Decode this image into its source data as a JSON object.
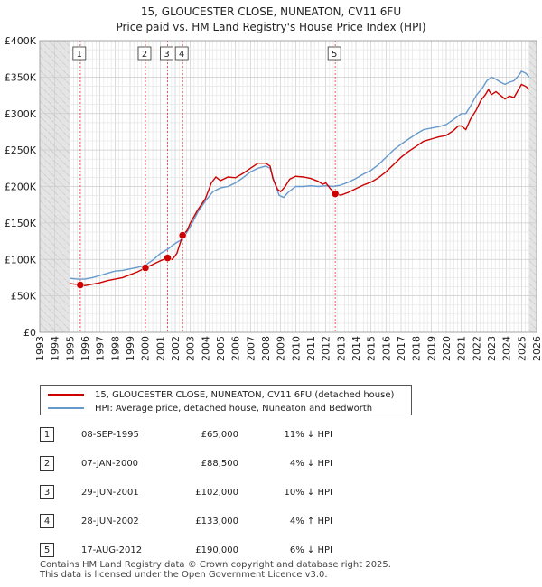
{
  "chart_data": {
    "type": "line",
    "title": "15, GLOUCESTER CLOSE, NUNEATON, CV11 6FU",
    "subtitle": "Price paid vs. HM Land Registry's House Price Index (HPI)",
    "xlim": [
      1993,
      2026
    ],
    "ylim": [
      0,
      400000
    ],
    "y_ticks": [
      0,
      50000,
      100000,
      150000,
      200000,
      250000,
      300000,
      350000,
      400000
    ],
    "y_tick_labels": [
      "£0",
      "£50K",
      "£100K",
      "£150K",
      "£200K",
      "£250K",
      "£300K",
      "£350K",
      "£400K"
    ],
    "x_ticks": [
      1993,
      1994,
      1995,
      1996,
      1997,
      1998,
      1999,
      2000,
      2001,
      2002,
      2003,
      2004,
      2005,
      2006,
      2007,
      2008,
      2009,
      2010,
      2011,
      2012,
      2013,
      2014,
      2015,
      2016,
      2017,
      2018,
      2019,
      2020,
      2021,
      2022,
      2023,
      2024,
      2025,
      2026
    ],
    "x_tick_labels": [
      "1993",
      "1994",
      "1995",
      "1996",
      "1997",
      "1998",
      "1999",
      "2000",
      "2001",
      "2002",
      "2003",
      "2004",
      "2005",
      "2006",
      "2007",
      "2008",
      "2009",
      "2010",
      "2011",
      "2012",
      "2013",
      "2014",
      "2015",
      "2016",
      "2017",
      "2018",
      "2019",
      "2020",
      "2021",
      "2022",
      "2023",
      "2024",
      "2025",
      "2026"
    ],
    "data_start": 1995.0,
    "data_end": 2025.5,
    "grid": true,
    "series": [
      {
        "name": "15, GLOUCESTER CLOSE, NUNEATON, CV11 6FU (detached house)",
        "color": "#cc0000",
        "points": [
          [
            1995.0,
            67000
          ],
          [
            1995.5,
            65500
          ],
          [
            1995.69,
            65000
          ],
          [
            1996.0,
            64000
          ],
          [
            1996.5,
            66000
          ],
          [
            1997.0,
            68000
          ],
          [
            1997.5,
            71000
          ],
          [
            1998.0,
            73000
          ],
          [
            1998.5,
            75000
          ],
          [
            1999.0,
            79000
          ],
          [
            1999.5,
            83000
          ],
          [
            2000.02,
            88500
          ],
          [
            2000.5,
            93000
          ],
          [
            2001.0,
            98000
          ],
          [
            2001.49,
            102000
          ],
          [
            2001.8,
            100000
          ],
          [
            2002.1,
            108000
          ],
          [
            2002.49,
            133000
          ],
          [
            2002.8,
            140000
          ],
          [
            2003.0,
            150000
          ],
          [
            2003.5,
            168000
          ],
          [
            2004.0,
            183000
          ],
          [
            2004.4,
            205000
          ],
          [
            2004.7,
            213000
          ],
          [
            2005.0,
            208000
          ],
          [
            2005.5,
            213000
          ],
          [
            2006.0,
            212000
          ],
          [
            2006.5,
            218000
          ],
          [
            2007.0,
            225000
          ],
          [
            2007.5,
            232000
          ],
          [
            2008.0,
            232000
          ],
          [
            2008.3,
            228000
          ],
          [
            2008.5,
            210000
          ],
          [
            2008.8,
            196000
          ],
          [
            2009.0,
            193000
          ],
          [
            2009.3,
            200000
          ],
          [
            2009.6,
            210000
          ],
          [
            2010.0,
            214000
          ],
          [
            2010.5,
            213000
          ],
          [
            2011.0,
            211000
          ],
          [
            2011.5,
            207000
          ],
          [
            2011.8,
            203000
          ],
          [
            2012.0,
            205000
          ],
          [
            2012.3,
            197000
          ],
          [
            2012.63,
            190000
          ],
          [
            2013.0,
            188000
          ],
          [
            2013.5,
            192000
          ],
          [
            2014.0,
            197000
          ],
          [
            2014.5,
            202000
          ],
          [
            2015.0,
            206000
          ],
          [
            2015.5,
            212000
          ],
          [
            2016.0,
            220000
          ],
          [
            2016.5,
            230000
          ],
          [
            2017.0,
            240000
          ],
          [
            2017.5,
            248000
          ],
          [
            2018.0,
            255000
          ],
          [
            2018.5,
            262000
          ],
          [
            2019.0,
            265000
          ],
          [
            2019.5,
            268000
          ],
          [
            2020.0,
            270000
          ],
          [
            2020.5,
            277000
          ],
          [
            2020.8,
            283000
          ],
          [
            2021.0,
            283000
          ],
          [
            2021.3,
            278000
          ],
          [
            2021.6,
            292000
          ],
          [
            2022.0,
            305000
          ],
          [
            2022.3,
            318000
          ],
          [
            2022.6,
            326000
          ],
          [
            2022.8,
            333000
          ],
          [
            2023.0,
            326000
          ],
          [
            2023.3,
            330000
          ],
          [
            2023.6,
            325000
          ],
          [
            2023.9,
            320000
          ],
          [
            2024.2,
            324000
          ],
          [
            2024.5,
            322000
          ],
          [
            2024.8,
            333000
          ],
          [
            2025.0,
            340000
          ],
          [
            2025.3,
            337000
          ],
          [
            2025.5,
            333000
          ]
        ]
      },
      {
        "name": "HPI: Average price, detached house, Nuneaton and Bedworth",
        "color": "#6699cc",
        "points": [
          [
            1995.0,
            74000
          ],
          [
            1995.5,
            73000
          ],
          [
            1996.0,
            73000
          ],
          [
            1996.5,
            75000
          ],
          [
            1997.0,
            78000
          ],
          [
            1997.5,
            81000
          ],
          [
            1998.0,
            84000
          ],
          [
            1998.5,
            85000
          ],
          [
            1999.0,
            87000
          ],
          [
            1999.5,
            89000
          ],
          [
            2000.0,
            92000
          ],
          [
            2000.5,
            99000
          ],
          [
            2001.0,
            108000
          ],
          [
            2001.5,
            114000
          ],
          [
            2002.0,
            122000
          ],
          [
            2002.5,
            128000
          ],
          [
            2003.0,
            145000
          ],
          [
            2003.5,
            165000
          ],
          [
            2004.0,
            180000
          ],
          [
            2004.5,
            193000
          ],
          [
            2005.0,
            198000
          ],
          [
            2005.5,
            200000
          ],
          [
            2006.0,
            205000
          ],
          [
            2006.5,
            212000
          ],
          [
            2007.0,
            220000
          ],
          [
            2007.5,
            225000
          ],
          [
            2008.0,
            228000
          ],
          [
            2008.3,
            225000
          ],
          [
            2008.6,
            205000
          ],
          [
            2008.9,
            188000
          ],
          [
            2009.2,
            185000
          ],
          [
            2009.5,
            192000
          ],
          [
            2010.0,
            200000
          ],
          [
            2010.5,
            200000
          ],
          [
            2011.0,
            201000
          ],
          [
            2011.5,
            200000
          ],
          [
            2012.0,
            201000
          ],
          [
            2012.5,
            200000
          ],
          [
            2013.0,
            202000
          ],
          [
            2013.5,
            206000
          ],
          [
            2014.0,
            211000
          ],
          [
            2014.5,
            217000
          ],
          [
            2015.0,
            222000
          ],
          [
            2015.5,
            230000
          ],
          [
            2016.0,
            240000
          ],
          [
            2016.5,
            250000
          ],
          [
            2017.0,
            258000
          ],
          [
            2017.5,
            265000
          ],
          [
            2018.0,
            272000
          ],
          [
            2018.5,
            278000
          ],
          [
            2019.0,
            280000
          ],
          [
            2019.5,
            282000
          ],
          [
            2020.0,
            285000
          ],
          [
            2020.5,
            292000
          ],
          [
            2021.0,
            300000
          ],
          [
            2021.3,
            300000
          ],
          [
            2021.6,
            310000
          ],
          [
            2022.0,
            325000
          ],
          [
            2022.4,
            335000
          ],
          [
            2022.7,
            345000
          ],
          [
            2023.0,
            350000
          ],
          [
            2023.3,
            347000
          ],
          [
            2023.6,
            343000
          ],
          [
            2023.9,
            340000
          ],
          [
            2024.2,
            343000
          ],
          [
            2024.5,
            345000
          ],
          [
            2024.8,
            352000
          ],
          [
            2025.0,
            358000
          ],
          [
            2025.3,
            355000
          ],
          [
            2025.5,
            350000
          ]
        ]
      }
    ],
    "sales": [
      {
        "id": "1",
        "x": 1995.69,
        "price": 65000
      },
      {
        "id": "2",
        "x": 2000.02,
        "price": 88500
      },
      {
        "id": "3",
        "x": 2001.49,
        "price": 102000
      },
      {
        "id": "4",
        "x": 2002.49,
        "price": 133000
      },
      {
        "id": "5",
        "x": 2012.63,
        "price": 190000
      }
    ]
  },
  "legend": {
    "property_label": "15, GLOUCESTER CLOSE, NUNEATON, CV11 6FU (detached house)",
    "hpi_label": "HPI: Average price, detached house, Nuneaton and Bedworth",
    "property_color": "#cc0000",
    "hpi_color": "#6699cc"
  },
  "table": {
    "rows": [
      {
        "num": "1",
        "date": "08-SEP-1995",
        "price": "£65,000",
        "hpi": "11% ↓ HPI"
      },
      {
        "num": "2",
        "date": "07-JAN-2000",
        "price": "£88,500",
        "hpi": "4% ↓ HPI"
      },
      {
        "num": "3",
        "date": "29-JUN-2001",
        "price": "£102,000",
        "hpi": "10% ↓ HPI"
      },
      {
        "num": "4",
        "date": "28-JUN-2002",
        "price": "£133,000",
        "hpi": "4% ↑ HPI"
      },
      {
        "num": "5",
        "date": "17-AUG-2012",
        "price": "£190,000",
        "hpi": "6% ↓ HPI"
      }
    ]
  },
  "footer": {
    "line1": "Contains HM Land Registry data © Crown copyright and database right 2025.",
    "line2": "This data is licensed under the Open Government Licence v3.0."
  }
}
